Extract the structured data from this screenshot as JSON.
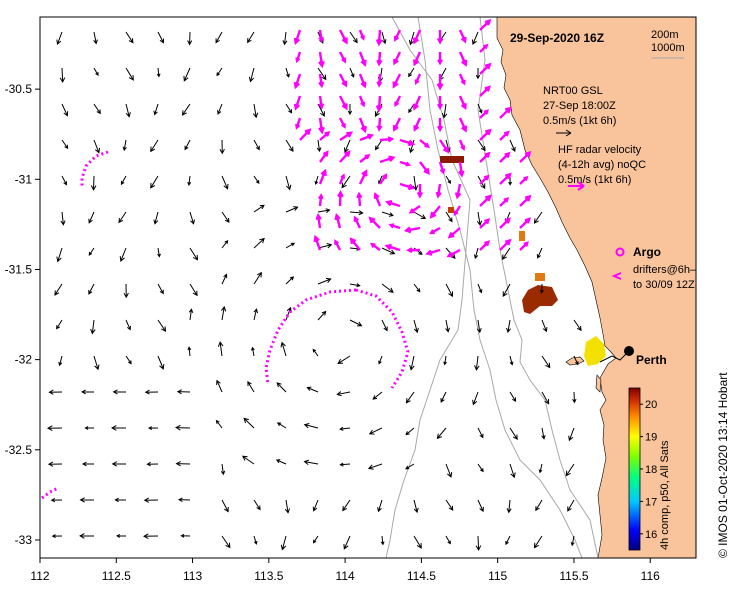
{
  "map": {
    "title": "29-Sep-2020 16Z",
    "colors": {
      "land": "#f9c49c",
      "ocean": "#ffffff",
      "contour": "#a8a8a8",
      "vectors": "#000000",
      "hf_radar": "#ff00ff"
    },
    "axes": {
      "x_ticks": [
        "112",
        "112.5",
        "113",
        "113.5",
        "114",
        "114.5",
        "115",
        "115.5",
        "116"
      ],
      "y_ticks": [
        "-30.5",
        "-31",
        "-31.5",
        "-32",
        "-32.5",
        "-33"
      ],
      "xlim": [
        112,
        116.3
      ],
      "ylim": [
        -33.1,
        -30.1
      ]
    },
    "legend": {
      "depth_200": "200m",
      "depth_1000": "1000m",
      "nrt_line1": "NRT00 GSL",
      "nrt_line2": "27-Sep 18:00Z",
      "nrt_scale": "0.5m/s (1kt 6h)",
      "hf_line1": "HF radar velocity",
      "hf_line2": "(4-12h avg) noQC",
      "hf_scale": "0.5m/s (1kt 6h)",
      "argo": "Argo",
      "drifters1": "drifters@6h–",
      "drifters2": "to 30/09 12Z"
    },
    "place": {
      "name": "Perth"
    },
    "colorbar": {
      "ticks": [
        "20",
        "19",
        "18",
        "17",
        "16"
      ],
      "label": "4h comp, p50, All Sats",
      "range": [
        15.5,
        20.5
      ]
    },
    "credit": "©  IMOS 01-Oct-2020 13:14 Hobart"
  }
}
